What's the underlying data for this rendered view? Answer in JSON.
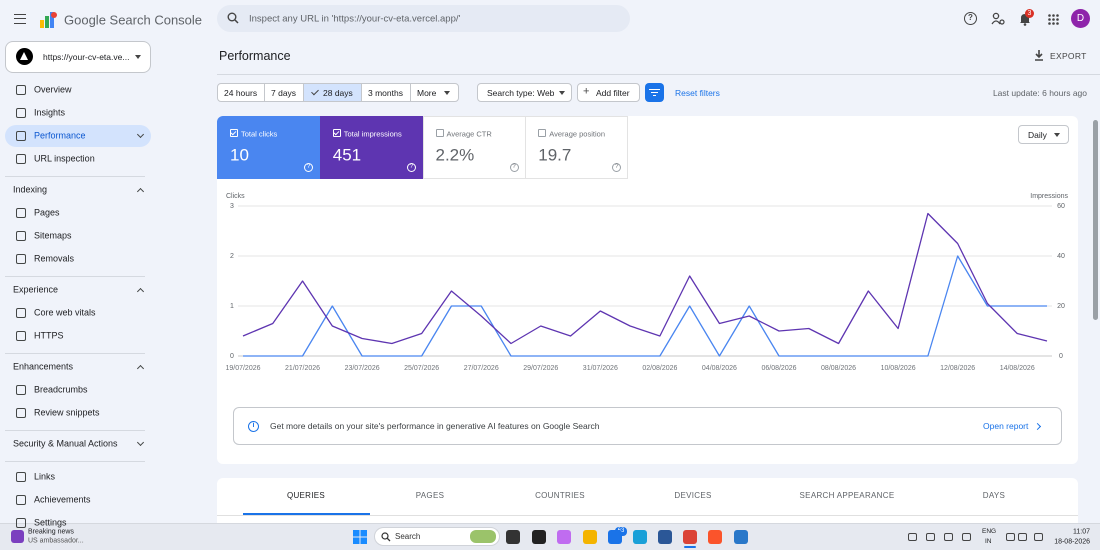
{
  "header": {
    "product": "Google Search Console",
    "search_placeholder": "Inspect any URL in 'https://your-cv-eta.vercel.app/'",
    "notifications": "3",
    "avatar": "D"
  },
  "sidebar": {
    "property": "https://your-cv-eta.ve...",
    "items": [
      "Overview",
      "Insights",
      "Performance",
      "URL inspection"
    ],
    "sections": [
      {
        "title": "Indexing",
        "items": [
          "Pages",
          "Sitemaps",
          "Removals"
        ]
      },
      {
        "title": "Experience",
        "items": [
          "Core web vitals",
          "HTTPS"
        ]
      },
      {
        "title": "Enhancements",
        "items": [
          "Breadcrumbs",
          "Review snippets"
        ]
      },
      {
        "title": "Security & Manual Actions",
        "items": []
      }
    ],
    "footer_items": [
      "Links",
      "Achievements",
      "Settings"
    ]
  },
  "page": {
    "title": "Performance",
    "export": "EXPORT"
  },
  "filters": {
    "date_ranges": [
      "24 hours",
      "7 days",
      "28 days",
      "3 months",
      "More"
    ],
    "search_type": "Search type: Web",
    "add_filter": "Add filter",
    "reset": "Reset filters",
    "last_update": "Last update: 6 hours ago"
  },
  "metrics": [
    {
      "label": "Total clicks",
      "value": "10"
    },
    {
      "label": "Total impressions",
      "value": "451"
    },
    {
      "label": "Average CTR",
      "value": "2.2%"
    },
    {
      "label": "Average position",
      "value": "19.7"
    }
  ],
  "granularity": "Daily",
  "chart_data": {
    "type": "line",
    "ylabel": "Clicks",
    "y2label": "Impressions",
    "categories": [
      "19/07/2026",
      null,
      "21/07/2026",
      null,
      "23/07/2026",
      null,
      "25/07/2026",
      null,
      "27/07/2026",
      null,
      "29/07/2026",
      null,
      "31/07/2026",
      null,
      "02/08/2026",
      null,
      "04/08/2026",
      null,
      "06/08/2026",
      null,
      "08/08/2026",
      null,
      "10/08/2026",
      null,
      "12/08/2026",
      null,
      "14/08/2026",
      null
    ],
    "series": [
      {
        "name": "Clicks",
        "color": "#4a86f0",
        "values": [
          0,
          0,
          0,
          1,
          0,
          0,
          0,
          1,
          1,
          0,
          0,
          0,
          0,
          0,
          0,
          1,
          0,
          1,
          0,
          0,
          0,
          0,
          0,
          0,
          2,
          1,
          1,
          1
        ]
      },
      {
        "name": "Impressions",
        "color": "#5e35b1",
        "axis": "y2",
        "values": [
          8,
          13,
          30,
          12,
          7,
          5,
          9,
          26,
          16,
          5,
          12,
          8,
          18,
          12,
          8,
          32,
          13,
          16,
          10,
          11,
          5,
          26,
          11,
          57,
          45,
          21,
          9,
          6
        ]
      }
    ],
    "ylim": [
      0,
      3
    ],
    "yticks": [
      0,
      1,
      2,
      3
    ],
    "y2lim": [
      0,
      60
    ],
    "y2ticks": [
      0,
      20,
      40,
      60
    ],
    "grid": true
  },
  "banner": {
    "text": "Get more details on your site's performance in generative AI features on Google Search",
    "link": "Open report"
  },
  "tabs": [
    "QUERIES",
    "PAGES",
    "COUNTRIES",
    "DEVICES",
    "SEARCH APPEARANCE",
    "DAYS"
  ],
  "taskbar": {
    "news_title": "Breaking news",
    "news_text": "US ambassador...",
    "search": "Search",
    "badge": "63",
    "language": "ENG",
    "region": "IN",
    "time": "11:07",
    "date": "18-08-2026"
  }
}
